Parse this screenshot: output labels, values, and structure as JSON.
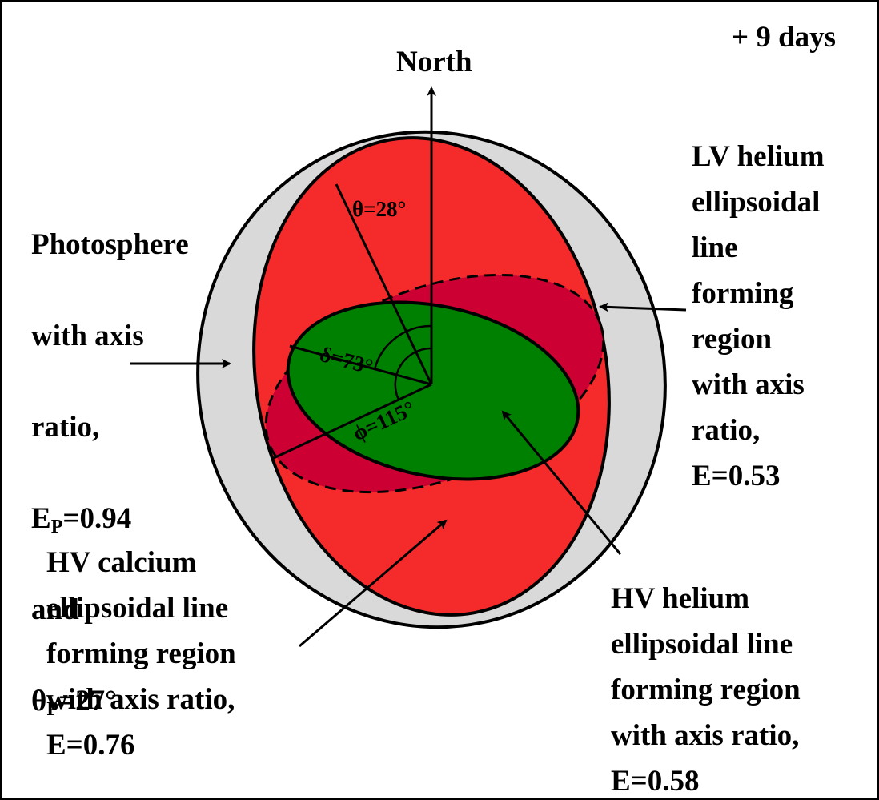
{
  "labels": {
    "days": "+ 9 days",
    "north": "North",
    "photosphere": {
      "lines": [
        "Photosphere",
        "with axis",
        "ratio,"
      ],
      "ep_symbol": "E",
      "ep_sub": "P",
      "ep_value": "=0.94",
      "and": "and",
      "theta_symbol": "θ",
      "theta_sub": "P",
      "theta_value": "=27°"
    },
    "lv_helium": "LV helium\nellipsoidal\nline\nforming\nregion\nwith axis\nratio,\nE=0.53",
    "hv_calcium": "HV calcium\nellipsoidal line\nforming region\nwith axis ratio,\nE=0.76",
    "hv_helium": "HV helium\nellipsoidal line\nforming region\nwith axis ratio,\nE=0.58"
  },
  "angles": {
    "theta": "θ=28°",
    "delta": "δ=73°",
    "phi": "ϕ=115°"
  },
  "colors": {
    "photosphere": "#d9d9d9",
    "hv_calcium": "#f52b2b",
    "hv_helium": "#008000",
    "lv_helium": "#0000ff",
    "overlap": "#cc0033",
    "outline": "#000000"
  }
}
